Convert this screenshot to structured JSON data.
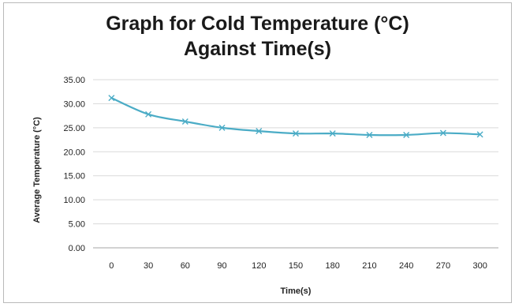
{
  "chart_data": {
    "type": "line",
    "title_line1": "Graph for Cold Temperature (°C)",
    "title_line2": "Against Time(s)",
    "xlabel": "Time(s)",
    "ylabel": "Average Temperature (°C)",
    "x": [
      0,
      30,
      60,
      90,
      120,
      150,
      180,
      210,
      240,
      270,
      300
    ],
    "x_tick_labels": [
      "0",
      "30",
      "60",
      "90",
      "120",
      "150",
      "180",
      "210",
      "240",
      "270",
      "300"
    ],
    "series": [
      {
        "values": [
          31.2,
          27.8,
          26.3,
          25.0,
          24.3,
          23.8,
          23.8,
          23.5,
          23.5,
          23.9,
          23.6
        ],
        "color": "#4bacc6",
        "marker": "x"
      }
    ],
    "ylim": [
      0,
      35
    ],
    "y_ticks": [
      0,
      5,
      10,
      15,
      20,
      25,
      30,
      35
    ],
    "y_tick_labels": [
      "0.00",
      "5.00",
      "10.00",
      "15.00",
      "20.00",
      "25.00",
      "30.00",
      "35.00"
    ],
    "grid": true,
    "gridline_color": "#d9d9d9",
    "legend": "none"
  }
}
